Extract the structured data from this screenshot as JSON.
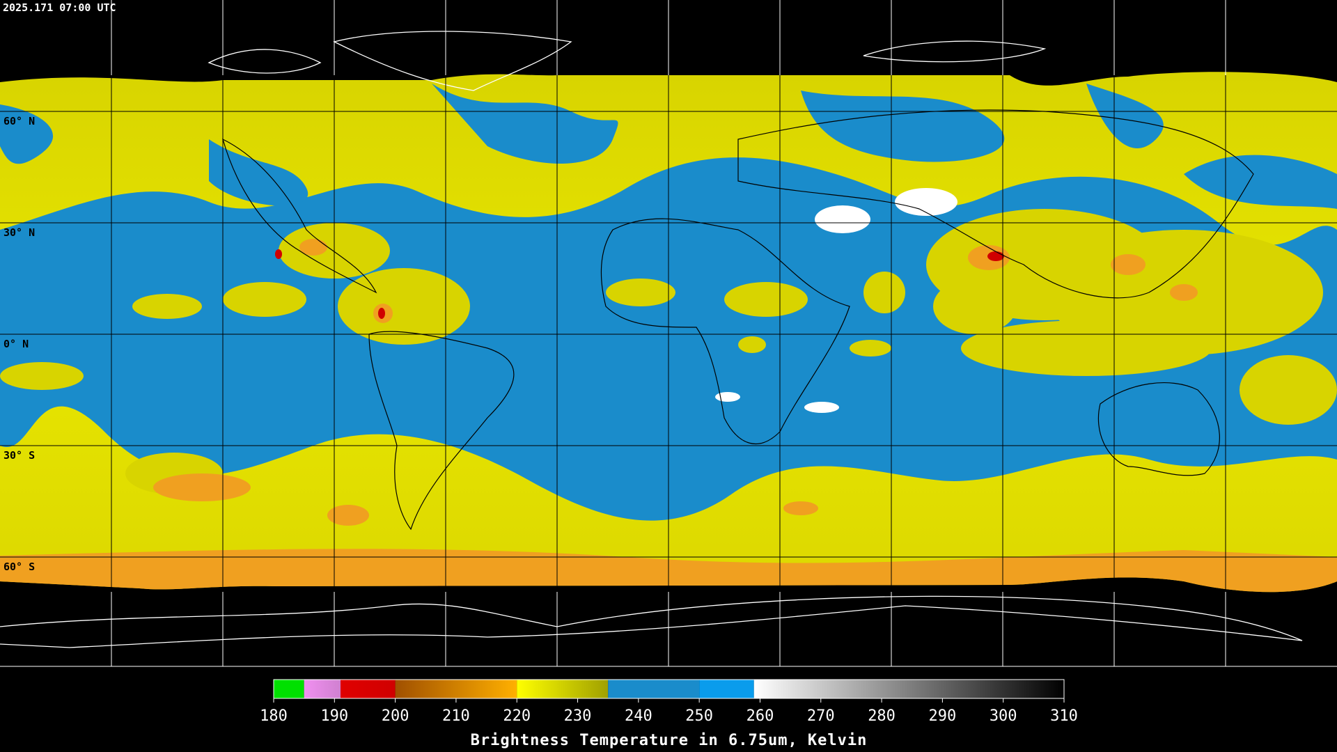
{
  "timestamp": "2025.171 07:00 UTC",
  "lat_labels": [
    "60° N",
    "30° N",
    "0° N",
    "30° S",
    "60° S"
  ],
  "colorbar": {
    "title": "Brightness Temperature in 6.75um, Kelvin",
    "lim": [
      180,
      310
    ],
    "ticks": [
      180,
      190,
      200,
      210,
      220,
      230,
      240,
      250,
      260,
      270,
      280,
      290,
      300,
      310
    ],
    "segments": [
      {
        "from": 180,
        "to": 185,
        "color": "#00e000",
        "color_end": "#00e000"
      },
      {
        "from": 185,
        "to": 191,
        "color": "#f090f0",
        "color_end": "#d080d0"
      },
      {
        "from": 191,
        "to": 200,
        "color": "#e00000",
        "color_end": "#d00000"
      },
      {
        "from": 200,
        "to": 220,
        "color": "#a05000",
        "color_end": "#ffb000"
      },
      {
        "from": 220,
        "to": 235,
        "color": "#ffff00",
        "color_end": "#a0a000"
      },
      {
        "from": 235,
        "to": 250,
        "color": "#1a8ccb",
        "color_end": "#1a8ccb"
      },
      {
        "from": 250,
        "to": 259,
        "color": "#0a9cec",
        "color_end": "#0a9cec"
      },
      {
        "from": 259,
        "to": 310,
        "color": "#ffffff",
        "color_end": "#000000"
      }
    ]
  }
}
